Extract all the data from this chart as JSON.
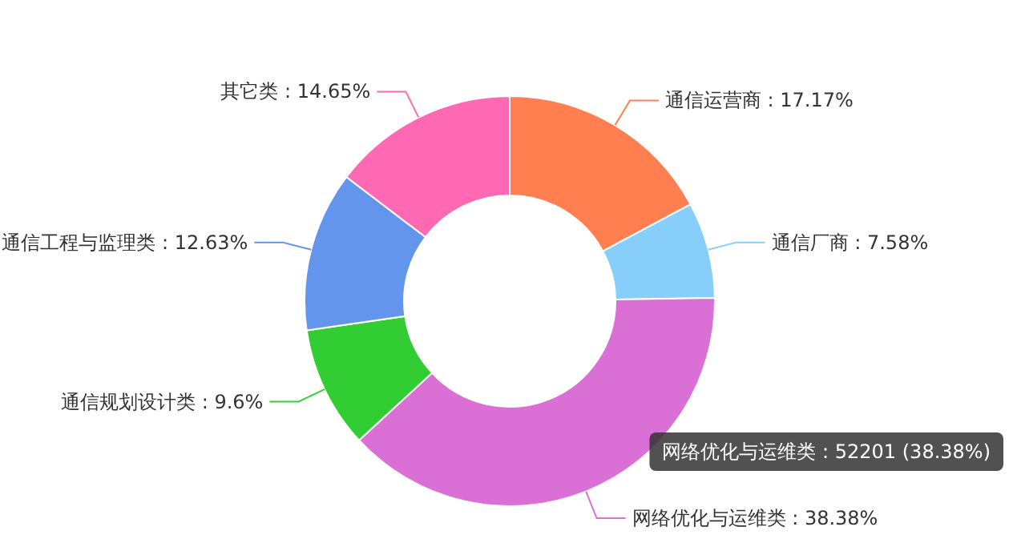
{
  "chart_data": {
    "type": "donut",
    "categories": [
      "通信运营商",
      "通信厂商",
      "网络优化与运维类",
      "通信规划设计类",
      "通信工程与监理类",
      "其它类"
    ],
    "values": [
      17.17,
      7.58,
      38.38,
      9.6,
      12.63,
      14.65
    ],
    "value_labels": [
      "17.17%",
      "7.58%",
      "38.38%",
      "9.6%",
      "12.63%",
      "14.65%"
    ],
    "colors": [
      "#ff7f50",
      "#87cefa",
      "#da70d6",
      "#32cd32",
      "#6495ed",
      "#ff69b4"
    ],
    "annotations": [
      "网络优化与运维类 : 52201 (38.38%)"
    ]
  }
}
